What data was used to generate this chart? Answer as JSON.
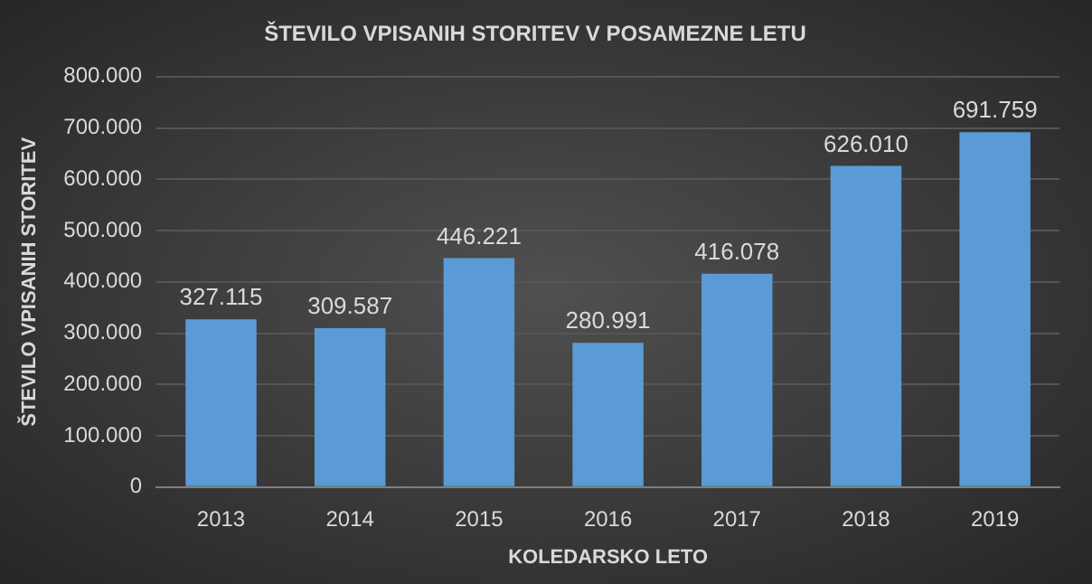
{
  "chart_data": {
    "type": "bar",
    "title": "ŠTEVILO VPISANIH STORITEV V POSAMEZNE LETU",
    "xlabel": "KOLEDARSKO LETO",
    "ylabel": "ŠTEVILO VPISANIH STORITEV",
    "categories": [
      "2013",
      "2014",
      "2015",
      "2016",
      "2017",
      "2018",
      "2019"
    ],
    "values": [
      327115,
      309587,
      446221,
      280991,
      416078,
      626010,
      691759
    ],
    "value_labels": [
      "327.115",
      "309.587",
      "446.221",
      "280.991",
      "416.078",
      "626.010",
      "691.759"
    ],
    "color": "#5b9bd5",
    "ylim": [
      0,
      800000
    ],
    "yticks": [
      0,
      {
        "value": 100000,
        "label": "100.000"
      },
      {
        "value": 200000,
        "label": "200.000"
      },
      {
        "value": 300000,
        "label": "300.000"
      },
      {
        "value": 400000,
        "label": "400.000"
      },
      {
        "value": 500000,
        "label": "500.000"
      },
      {
        "value": 600000,
        "label": "600.000"
      },
      {
        "value": 700000,
        "label": "700.000"
      },
      {
        "value": 800000,
        "label": "800.000"
      }
    ],
    "grid": "y"
  }
}
